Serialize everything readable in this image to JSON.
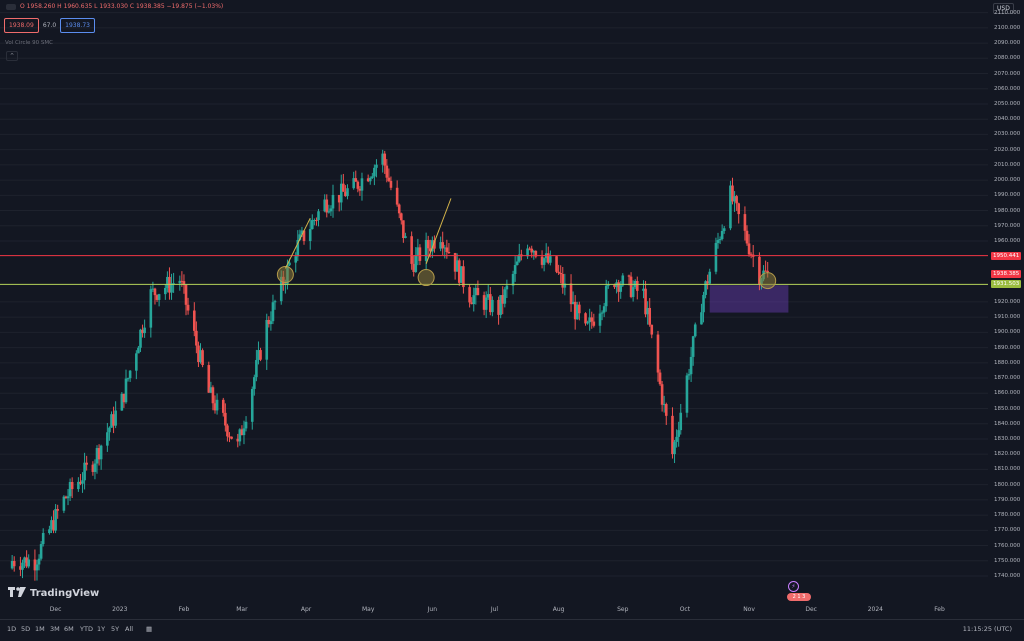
{
  "legend": {
    "ohlc": "O 1958.260 H 1960.635 L 1933.030 C 1938.385 −19.875 (−1.03%)"
  },
  "trade": {
    "sell": "1938.09",
    "spread": "67.0",
    "buy": "1938.73"
  },
  "indicator": {
    "label": "Vol Circle 90 SMC"
  },
  "currency": "USD",
  "y_axis_labels": [
    "2110.000",
    "2100.000",
    "2090.000",
    "2080.000",
    "2070.000",
    "2060.000",
    "2050.000",
    "2040.000",
    "2030.000",
    "2020.000",
    "2010.000",
    "2000.000",
    "1990.000",
    "1980.000",
    "1970.000",
    "1960.000",
    "1920.000",
    "1910.000",
    "1900.000",
    "1890.000",
    "1880.000",
    "1870.000",
    "1860.000",
    "1850.000",
    "1840.000",
    "1830.000",
    "1820.000",
    "1810.000",
    "1800.000",
    "1790.000",
    "1780.000",
    "1770.000",
    "1760.000",
    "1750.000",
    "1740.000"
  ],
  "y_axis_values": [
    2110,
    2100,
    2090,
    2080,
    2070,
    2060,
    2050,
    2040,
    2030,
    2020,
    2010,
    2000,
    1990,
    1980,
    1970,
    1960,
    1920,
    1910,
    1900,
    1890,
    1880,
    1870,
    1860,
    1850,
    1840,
    1830,
    1820,
    1810,
    1800,
    1790,
    1780,
    1770,
    1760,
    1750,
    1740
  ],
  "x_axis_labels": [
    "Dec",
    "2023",
    "Feb",
    "Mar",
    "Apr",
    "May",
    "Jun",
    "Jul",
    "Aug",
    "Sep",
    "Oct",
    "Nov",
    "Dec",
    "2024",
    "Feb"
  ],
  "price_lines": {
    "red": {
      "label": "1950.441",
      "value": 1950.441,
      "color": "#f23645"
    },
    "current": {
      "label": "1938.385",
      "value": 1938.385,
      "color": "#f23645"
    },
    "green": {
      "label": "1931.503",
      "value": 1931.503,
      "color": "#b5d35a"
    }
  },
  "timeframes": [
    "1D",
    "5D",
    "1M",
    "3M",
    "6M",
    "YTD",
    "1Y",
    "5Y",
    "All"
  ],
  "clock": "11:15:25 (UTC)",
  "brand": "TradingView",
  "event_badge": "2 1 3",
  "colors": {
    "up": "#26a69a",
    "down": "#ef5350",
    "zone": "#6a3fb5",
    "bg": "#131722"
  },
  "chart_data": {
    "type": "candlestick",
    "x": [
      "2022-11-21",
      "2022-12-05",
      "2022-12-19",
      "2023-01-02",
      "2023-01-16",
      "2023-01-30",
      "2023-02-13",
      "2023-02-27",
      "2023-03-13",
      "2023-03-27",
      "2023-04-10",
      "2023-04-24",
      "2023-05-08",
      "2023-05-22",
      "2023-06-05",
      "2023-06-19",
      "2023-07-03",
      "2023-07-17",
      "2023-07-31",
      "2023-08-14",
      "2023-08-28",
      "2023-09-11",
      "2023-09-25",
      "2023-10-09",
      "2023-10-23",
      "2023-11-06"
    ],
    "close": [
      1750,
      1790,
      1815,
      1855,
      1925,
      1935,
      1860,
      1825,
      1905,
      1955,
      1985,
      1995,
      2015,
      1945,
      1965,
      1925,
      1915,
      1960,
      1940,
      1900,
      1935,
      1925,
      1820,
      1920,
      1990,
      1938.385
    ],
    "ylim": [
      1740,
      2115
    ],
    "horizontal_levels": [
      1950.441,
      1931.503
    ],
    "zone": {
      "x_start": "2023-10-13",
      "x_end": "2023-11-20",
      "y_low": 1913,
      "y_high": 1931
    }
  }
}
